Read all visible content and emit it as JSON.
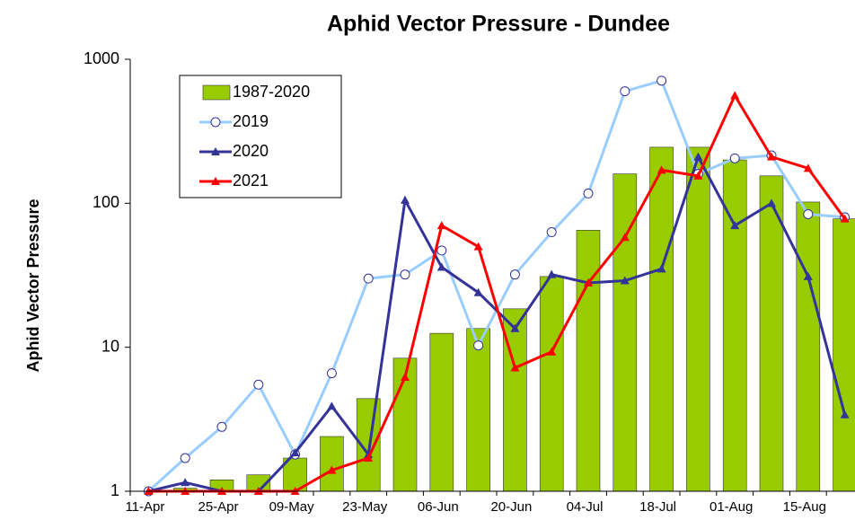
{
  "chart_data": {
    "type": "bar_line",
    "title": "Aphid Vector Pressure - Dundee",
    "y_label": "Aphid Vector Pressure",
    "categories": [
      "11-Apr",
      null,
      "25-Apr",
      null,
      "09-May",
      null,
      "23-May",
      null,
      "06-Jun",
      null,
      "20-Jun",
      null,
      "04-Jul",
      null,
      "18-Jul",
      null,
      "01-Aug",
      null,
      "15-Aug",
      null
    ],
    "ylim": [
      1,
      1000
    ],
    "yticks": [
      1,
      10,
      100,
      1000
    ],
    "log_scale": true,
    "grid": false,
    "legend": "upper left",
    "series": [
      {
        "name": "1987-2020",
        "kind": "bar",
        "color": "#99cc00",
        "values": [
          1.0,
          1.05,
          1.2,
          1.3,
          1.7,
          2.4,
          4.4,
          8.4,
          12.5,
          13.5,
          18.5,
          31,
          65,
          160,
          245,
          245,
          200,
          155,
          102,
          78
        ]
      },
      {
        "name": "2019",
        "kind": "line",
        "marker": "circle",
        "color": "#99ccff",
        "values": [
          1.0,
          1.7,
          2.8,
          5.5,
          1.8,
          6.6,
          30,
          32,
          47,
          10.3,
          32,
          63,
          117,
          600,
          710,
          160,
          205,
          215,
          84,
          80
        ]
      },
      {
        "name": "2020",
        "kind": "line",
        "marker": "triangle",
        "color": "#333399",
        "values": [
          1.0,
          1.15,
          1.0,
          1.0,
          1.85,
          3.9,
          1.8,
          105,
          36,
          24,
          13.5,
          32,
          28,
          29,
          35,
          210,
          70,
          100,
          31,
          3.4
        ]
      },
      {
        "name": "2021",
        "kind": "line",
        "marker": "triangle",
        "color": "#ff0000",
        "values": [
          1.0,
          1.0,
          1.0,
          1.0,
          1.0,
          1.4,
          1.7,
          6.2,
          70,
          50,
          7.2,
          9.3,
          28,
          58,
          170,
          155,
          560,
          210,
          175,
          78
        ]
      }
    ]
  }
}
